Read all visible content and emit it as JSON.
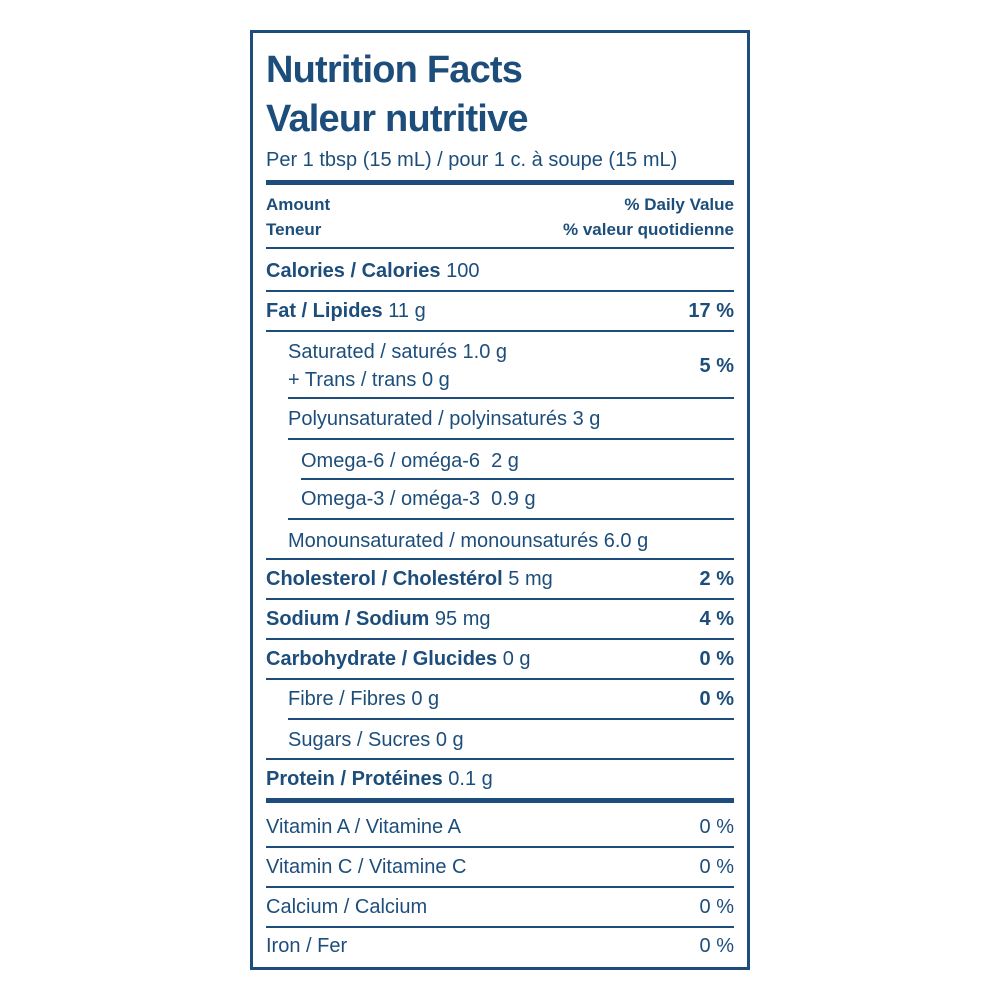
{
  "header": {
    "title": "Nutrition Facts",
    "title_fr": "Valeur nutritive",
    "serving": "Per 1 tbsp (15 mL) / pour 1 c. à soupe (15 mL)",
    "amount": "Amount",
    "amount_fr": "Teneur",
    "daily_value": "% Daily Value",
    "daily_value_fr": "% valeur quotidienne"
  },
  "nutrients": [
    {
      "name": "Calories / Calories",
      "amount": "100"
    },
    {
      "name": "Fat / Lipides",
      "amount": "11 g",
      "dv": "17 %"
    },
    {
      "line1": "Saturated / saturés 1.0 g",
      "line2": "+ Trans / trans 0 g",
      "dv": "5 %"
    },
    {
      "label": "Polyunsaturated / polyinsaturés 3 g"
    },
    {
      "label": "Omega-6 / oméga-6  2 g"
    },
    {
      "label": "Omega-3 / oméga-3  0.9 g"
    },
    {
      "label": "Monounsaturated / monounsaturés 6.0 g"
    },
    {
      "name": "Cholesterol / Cholestérol",
      "amount": "5 mg",
      "dv": "2 %"
    },
    {
      "name": "Sodium / Sodium",
      "amount": "95 mg",
      "dv": "4 %"
    },
    {
      "name": "Carbohydrate / Glucides",
      "amount": "0 g",
      "dv": "0 %"
    },
    {
      "label": "Fibre / Fibres 0 g",
      "dv": "0 %"
    },
    {
      "label": "Sugars / Sucres 0 g"
    },
    {
      "name": "Protein / Protéines",
      "amount": "0.1 g"
    }
  ],
  "vitamins": [
    {
      "name": "Vitamin A / Vitamine A",
      "dv": "0 %"
    },
    {
      "name": "Vitamin C / Vitamine C",
      "dv": "0 %"
    },
    {
      "name": "Calcium / Calcium",
      "dv": "0 %"
    },
    {
      "name": "Iron / Fer",
      "dv": "0 %"
    }
  ]
}
